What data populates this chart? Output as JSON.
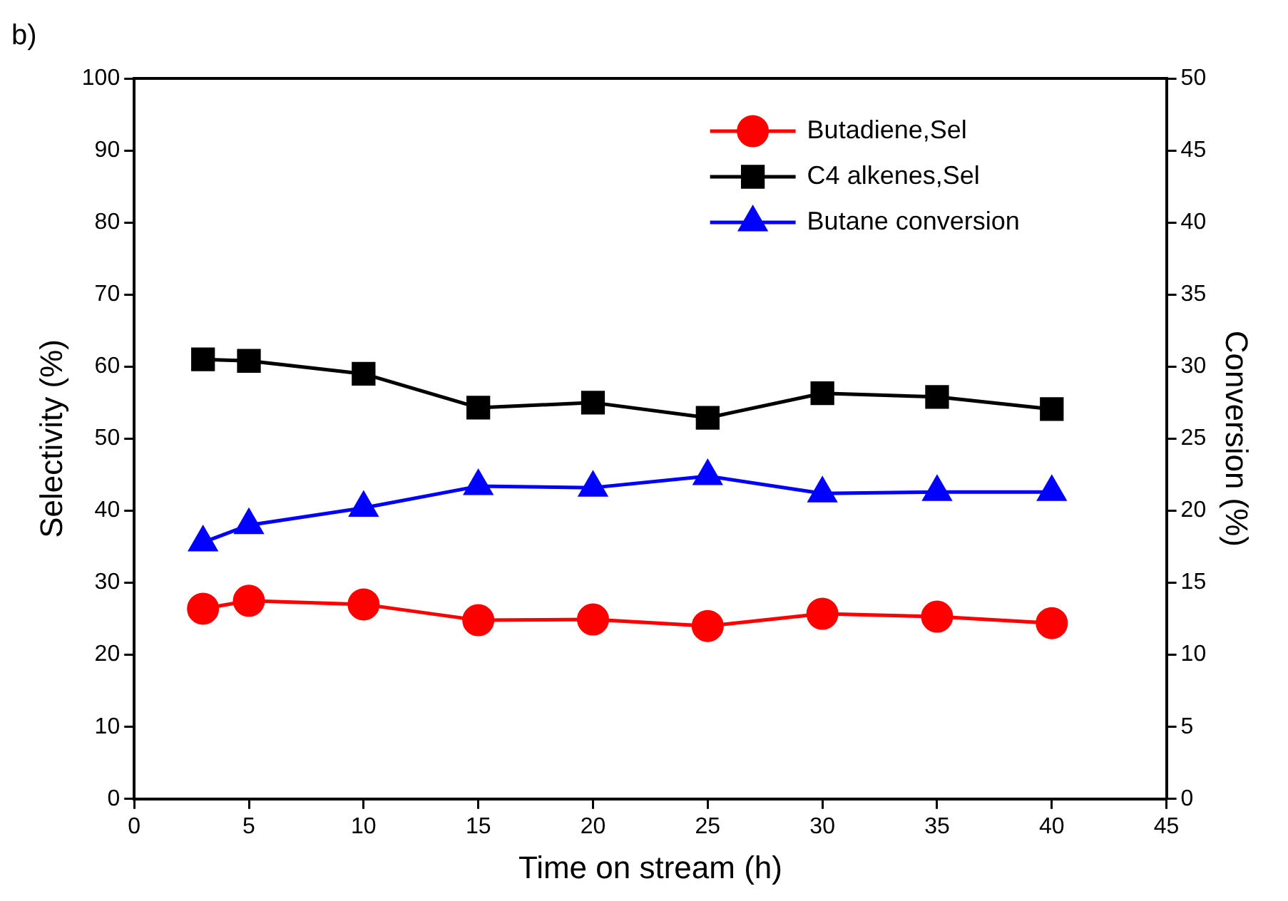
{
  "chart_data": {
    "type": "line",
    "xlabel": "Time on stream (h)",
    "ylabel": "Selectivity (%)",
    "y2label": "Conversion (%)",
    "annotations": [
      "b)"
    ],
    "x": [
      3,
      5,
      10,
      15,
      20,
      25,
      30,
      35,
      40
    ],
    "series": [
      {
        "name": "Butadiene,Sel",
        "color": "#ff0000",
        "marker": "circle",
        "values": [
          26.4,
          27.5,
          27.0,
          24.8,
          24.9,
          24.0,
          25.7,
          25.3,
          24.4
        ]
      },
      {
        "name": "C4 alkenes,Sel",
        "color": "#000000",
        "marker": "square",
        "values": [
          61.0,
          60.8,
          59.0,
          54.3,
          55.0,
          52.9,
          56.3,
          55.8,
          54.1
        ]
      },
      {
        "name": "Butane conversion",
        "color": "#0000ff",
        "marker": "triangle",
        "axis": "y2",
        "values": [
          17.8,
          19.0,
          20.2,
          21.7,
          21.6,
          22.4,
          21.2,
          21.3,
          21.3
        ]
      }
    ],
    "xlim": [
      0,
      45
    ],
    "xticks": [
      0,
      5,
      10,
      15,
      20,
      25,
      30,
      35,
      40,
      45
    ],
    "ylim": [
      0,
      100
    ],
    "yticks": [
      0,
      10,
      20,
      30,
      40,
      50,
      60,
      70,
      80,
      90,
      100
    ],
    "y2lim": [
      0,
      50
    ],
    "y2ticks": [
      0,
      5,
      10,
      15,
      20,
      25,
      30,
      35,
      40,
      45,
      50
    ],
    "grid": false,
    "legend": "top right",
    "line_style": "solid"
  }
}
